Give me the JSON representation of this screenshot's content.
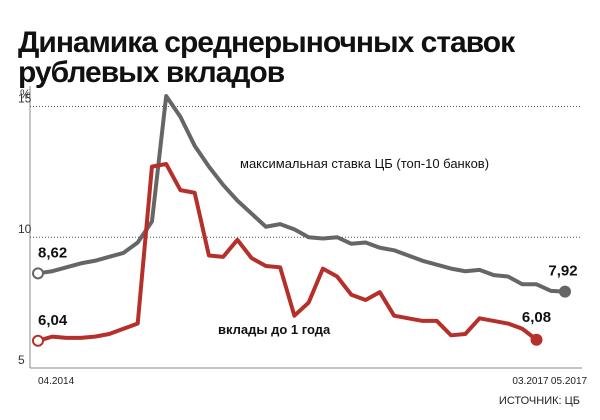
{
  "chart_data": {
    "type": "line",
    "title": "Динамика среднерыночных ставок рублевых вкладов",
    "y_label": "%",
    "source": "ИСТОЧНИК: ЦБ",
    "categories": [
      "04.2014",
      null,
      null,
      null,
      null,
      null,
      null,
      null,
      null,
      null,
      null,
      null,
      null,
      null,
      null,
      null,
      null,
      null,
      null,
      null,
      null,
      null,
      null,
      null,
      null,
      null,
      null,
      null,
      null,
      null,
      null,
      null,
      null,
      null,
      null,
      "03.2017",
      null,
      "05.2017"
    ],
    "ylim": [
      5,
      15.4
    ],
    "yticks": [
      5,
      10,
      15
    ],
    "grid": true,
    "series": [
      {
        "name": "максимальная ставка ЦБ (топ-10 банков)",
        "color": "#666666",
        "values": [
          8.62,
          8.7,
          8.85,
          9.0,
          9.1,
          9.25,
          9.4,
          9.8,
          10.6,
          15.4,
          14.6,
          13.5,
          12.7,
          12.0,
          11.4,
          10.9,
          10.4,
          10.5,
          10.3,
          10.0,
          9.95,
          10.0,
          9.75,
          9.8,
          9.6,
          9.5,
          9.3,
          9.1,
          8.95,
          8.8,
          8.7,
          8.75,
          8.55,
          8.5,
          8.2,
          8.2,
          7.95,
          7.92
        ],
        "value_labels": [
          "8,62",
          null,
          null,
          null,
          null,
          null,
          null,
          null,
          null,
          null,
          null,
          null,
          null,
          null,
          null,
          null,
          null,
          null,
          null,
          null,
          null,
          null,
          null,
          null,
          null,
          null,
          null,
          null,
          null,
          null,
          null,
          null,
          null,
          null,
          null,
          null,
          null,
          "7,92"
        ]
      },
      {
        "name": "вклады до 1 года",
        "color": "#b5302a",
        "values": [
          6.04,
          6.2,
          6.15,
          6.15,
          6.2,
          6.3,
          6.5,
          6.7,
          12.7,
          12.8,
          11.8,
          11.7,
          9.3,
          9.25,
          9.9,
          9.2,
          8.9,
          8.85,
          7.0,
          7.5,
          8.8,
          8.5,
          7.8,
          7.6,
          7.9,
          7.0,
          6.9,
          6.8,
          6.8,
          6.25,
          6.3,
          6.9,
          6.8,
          6.7,
          6.5,
          6.08,
          null,
          null
        ],
        "value_labels": [
          "6,04",
          null,
          null,
          null,
          null,
          null,
          null,
          null,
          null,
          null,
          null,
          null,
          null,
          null,
          null,
          null,
          null,
          null,
          null,
          null,
          null,
          null,
          null,
          null,
          null,
          null,
          null,
          null,
          null,
          null,
          null,
          null,
          null,
          null,
          null,
          "6,08",
          null,
          null
        ]
      }
    ]
  }
}
